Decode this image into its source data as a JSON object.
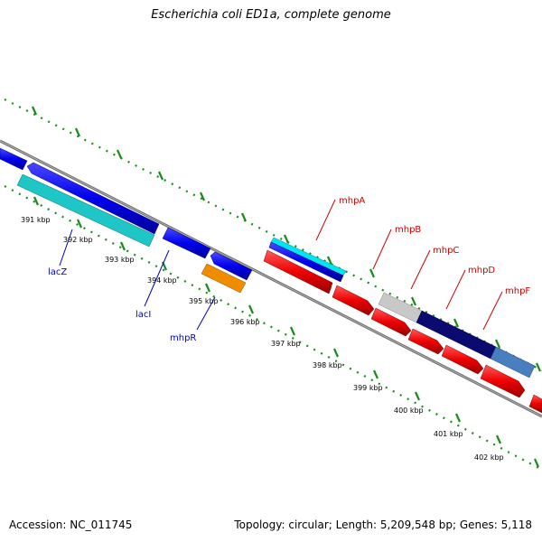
{
  "title": "Escherichia coli ED1a, complete genome",
  "footer": {
    "accession": "Accession: NC_011745",
    "summary": "Topology: circular; Length: 5,209,548 bp; Genes: 5,118"
  },
  "colors": {
    "backbone": "#808080",
    "tick_marks": "#1a8a1a",
    "forward_gene": "#0000ee",
    "reverse_gene": "#ee0000",
    "label_blue": "#0000cc",
    "label_red": "#cc0000"
  },
  "scale_ticks": [
    {
      "label": "391 kbp"
    },
    {
      "label": "392 kbp"
    },
    {
      "label": "393 kbp"
    },
    {
      "label": "394 kbp"
    },
    {
      "label": "395 kbp"
    },
    {
      "label": "396 kbp"
    },
    {
      "label": "397 kbp"
    },
    {
      "label": "398 kbp"
    },
    {
      "label": "399 kbp"
    },
    {
      "label": "400 kbp"
    },
    {
      "label": "401 kbp"
    },
    {
      "label": "402 kbp"
    }
  ],
  "gene_labels": {
    "lacZ": "lacZ",
    "lacI": "lacI",
    "mhpR": "mhpR",
    "mhpA": "mhpA",
    "mhpB": "mhpB",
    "mhpC": "mhpC",
    "mhpD": "mhpD",
    "mhpF": "mhpF"
  }
}
